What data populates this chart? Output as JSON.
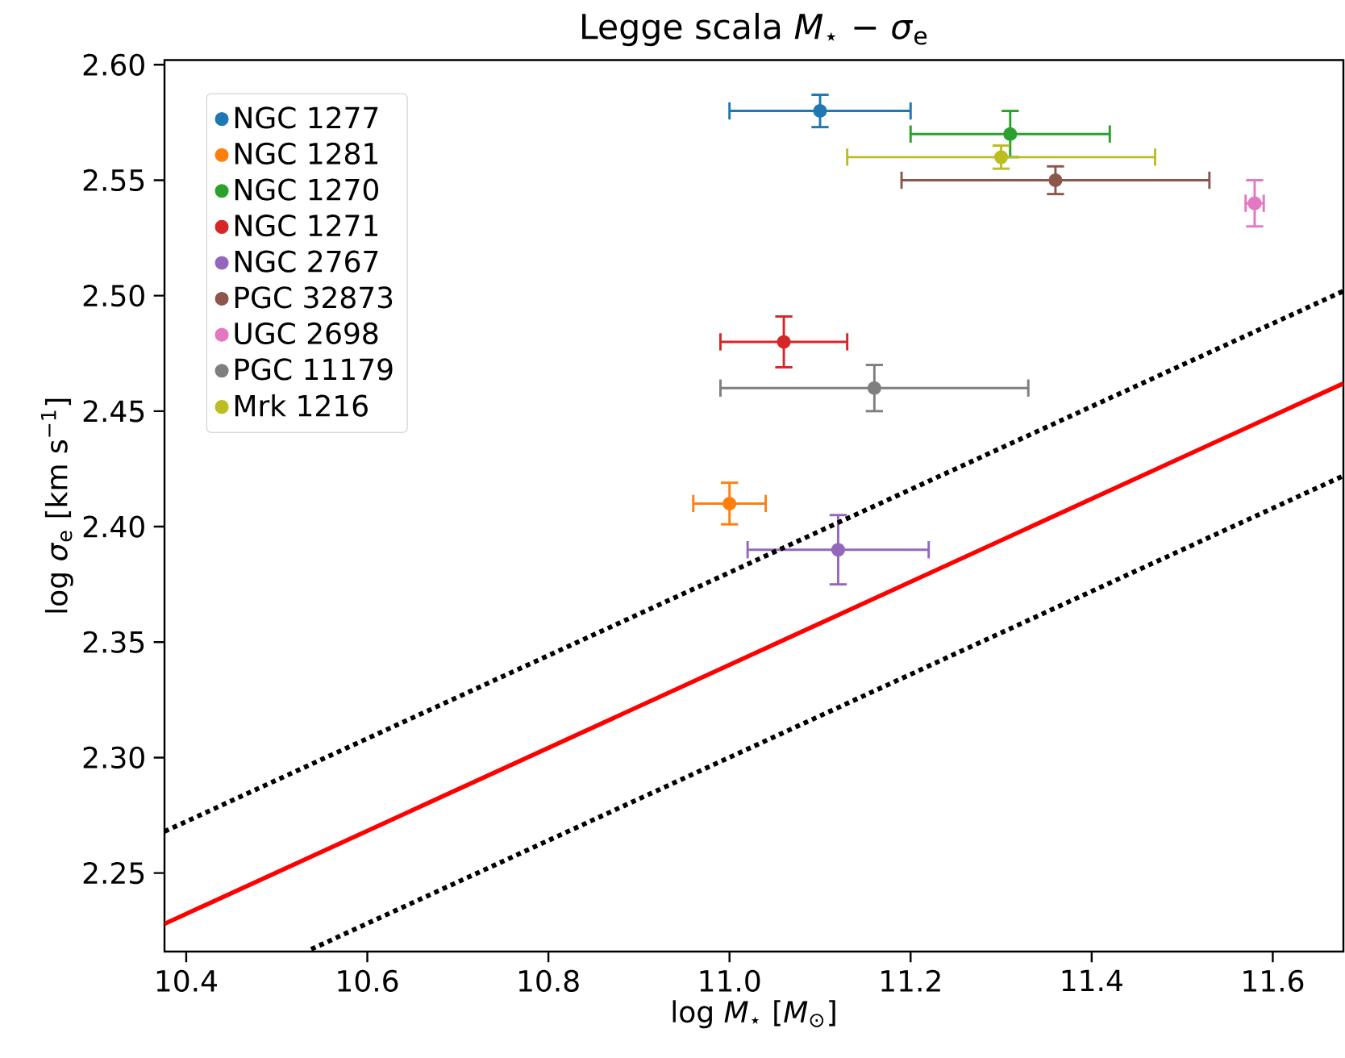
{
  "chart_data": {
    "type": "scatter",
    "title": "Legge scala *M*$_{⋆}$ − *σ*$_{e}$",
    "xlabel": "log *M*$_{⋆}$ [*M*$_{⊙}$]",
    "ylabel": "log *σ*$_{e}$ [km s$^{−1}$]",
    "xlim": [
      10.376,
      11.678
    ],
    "ylim": [
      2.216,
      2.602
    ],
    "xticks": [
      {
        "value": 10.4,
        "label": "10.4"
      },
      {
        "value": 10.6,
        "label": "10.6"
      },
      {
        "value": 10.8,
        "label": "10.8"
      },
      {
        "value": 11.0,
        "label": "11.0"
      },
      {
        "value": 11.2,
        "label": "11.2"
      },
      {
        "value": 11.4,
        "label": "11.4"
      },
      {
        "value": 11.6,
        "label": "11.6"
      }
    ],
    "yticks": [
      {
        "value": 2.25,
        "label": "2.25"
      },
      {
        "value": 2.3,
        "label": "2.30"
      },
      {
        "value": 2.35,
        "label": "2.35"
      },
      {
        "value": 2.4,
        "label": "2.40"
      },
      {
        "value": 2.45,
        "label": "2.45"
      },
      {
        "value": 2.5,
        "label": "2.50"
      },
      {
        "value": 2.55,
        "label": "2.55"
      },
      {
        "value": 2.6,
        "label": "2.60"
      }
    ],
    "legend": "top left",
    "series": [
      {
        "name": "NGC 1277",
        "marker": "circle",
        "color": "#1f77b4",
        "x": [
          11.1
        ],
        "values": [
          2.58
        ],
        "errors": [
          0.007
        ],
        "xerrors": [
          0.1
        ]
      },
      {
        "name": "NGC 1281",
        "marker": "circle",
        "color": "#ff7f0e",
        "x": [
          11.0
        ],
        "values": [
          2.41
        ],
        "errors": [
          0.009
        ],
        "xerrors": [
          0.04
        ]
      },
      {
        "name": "NGC 1270",
        "marker": "circle",
        "color": "#2ca02c",
        "x": [
          11.31
        ],
        "values": [
          2.57
        ],
        "errors": [
          0.01
        ],
        "xerrors": [
          0.11
        ]
      },
      {
        "name": "NGC 1271",
        "marker": "circle",
        "color": "#d62728",
        "x": [
          11.06
        ],
        "values": [
          2.48
        ],
        "errors": [
          0.011
        ],
        "xerrors": [
          0.07
        ]
      },
      {
        "name": "NGC 2767",
        "marker": "circle",
        "color": "#9467bd",
        "x": [
          11.12
        ],
        "values": [
          2.39
        ],
        "errors": [
          0.015
        ],
        "xerrors": [
          0.1
        ]
      },
      {
        "name": "PGC 32873",
        "marker": "circle",
        "color": "#8c564b",
        "x": [
          11.36
        ],
        "values": [
          2.55
        ],
        "errors": [
          0.006
        ],
        "xerrors": [
          0.17
        ]
      },
      {
        "name": "UGC 2698",
        "marker": "circle",
        "color": "#e377c2",
        "x": [
          11.58
        ],
        "values": [
          2.54
        ],
        "errors": [
          0.01
        ],
        "xerrors": [
          0.01
        ]
      },
      {
        "name": "PGC 11179",
        "marker": "circle",
        "color": "#7f7f7f",
        "x": [
          11.16
        ],
        "values": [
          2.46
        ],
        "errors": [
          0.01
        ],
        "xerrors": [
          0.17
        ]
      },
      {
        "name": "Mrk 1216",
        "marker": "circle",
        "color": "#bcbd22",
        "x": [
          11.3
        ],
        "values": [
          2.56
        ],
        "errors": [
          0.005
        ],
        "xerrors": [
          0.17
        ]
      },
      {
        "type": "line",
        "color": "#ff0000",
        "line_style": "solid",
        "x": [
          10.376,
          11.678
        ],
        "values": [
          2.228,
          2.462
        ]
      },
      {
        "type": "line",
        "color": "#000000",
        "line_style": "dotted",
        "x": [
          10.376,
          11.678
        ],
        "values": [
          2.268,
          2.502
        ]
      },
      {
        "type": "line",
        "color": "#000000",
        "line_style": "dotted",
        "x": [
          10.538,
          11.678
        ],
        "values": [
          2.217,
          2.422
        ]
      }
    ]
  }
}
